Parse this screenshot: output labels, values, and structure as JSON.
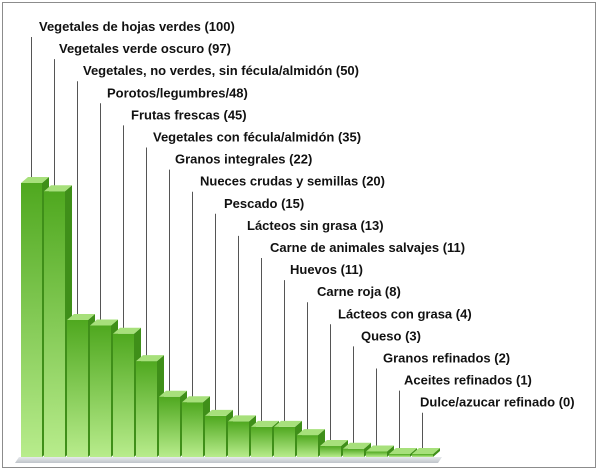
{
  "chart_data": {
    "type": "bar",
    "title": "",
    "xlabel": "",
    "ylabel": "",
    "ylim": [
      0,
      100
    ],
    "categories": [
      "Vegetales de hojas verdes",
      "Vegetales verde oscuro",
      "Vegetales, no verdes, sin fécula/almidón",
      "Porotos/legumbres/48",
      "Frutas frescas",
      "Vegetales con fécula/almidón",
      "Granos integrales",
      "Nueces crudas y semillas",
      "Pescado",
      "Lácteos sin grasa",
      "Carne de animales salvajes",
      "Huevos",
      "Carne roja",
      "Lácteos con grasa",
      "Queso",
      "Granos refinados",
      "Aceites refinados",
      "Dulce/azucar refinado"
    ],
    "values": [
      100,
      97,
      50,
      48,
      45,
      35,
      22,
      20,
      15,
      13,
      11,
      11,
      8,
      4,
      3,
      2,
      1,
      0
    ],
    "labels": [
      "Vegetales de hojas verdes (100)",
      "Vegetales verde oscuro (97)",
      "Vegetales, no verdes, sin fécula/almidón (50)",
      "Porotos/legumbres/48)",
      "Frutas frescas (45)",
      "Vegetales con fécula/almidón (35)",
      "Granos integrales (22)",
      "Nueces crudas y semillas (20)",
      "Pescado (15)",
      "Lácteos sin grasa (13)",
      "Carne de animales salvajes (11)",
      "Huevos (11)",
      "Carne roja (8)",
      "Lácteos con grasa (4)",
      "Queso (3)",
      "Granos refinados (2)",
      "Aceites refinados (1)",
      "Dulce/azucar refinado (0)"
    ],
    "grid": false,
    "legend": "none",
    "colors": {
      "front_top": "#4fa81f",
      "front_bottom": "#b8ec8c",
      "side": "#3f8f19",
      "top": "#a7e07b",
      "floor": "#d9dde2",
      "leader": "#555555",
      "text": "#111111"
    }
  }
}
